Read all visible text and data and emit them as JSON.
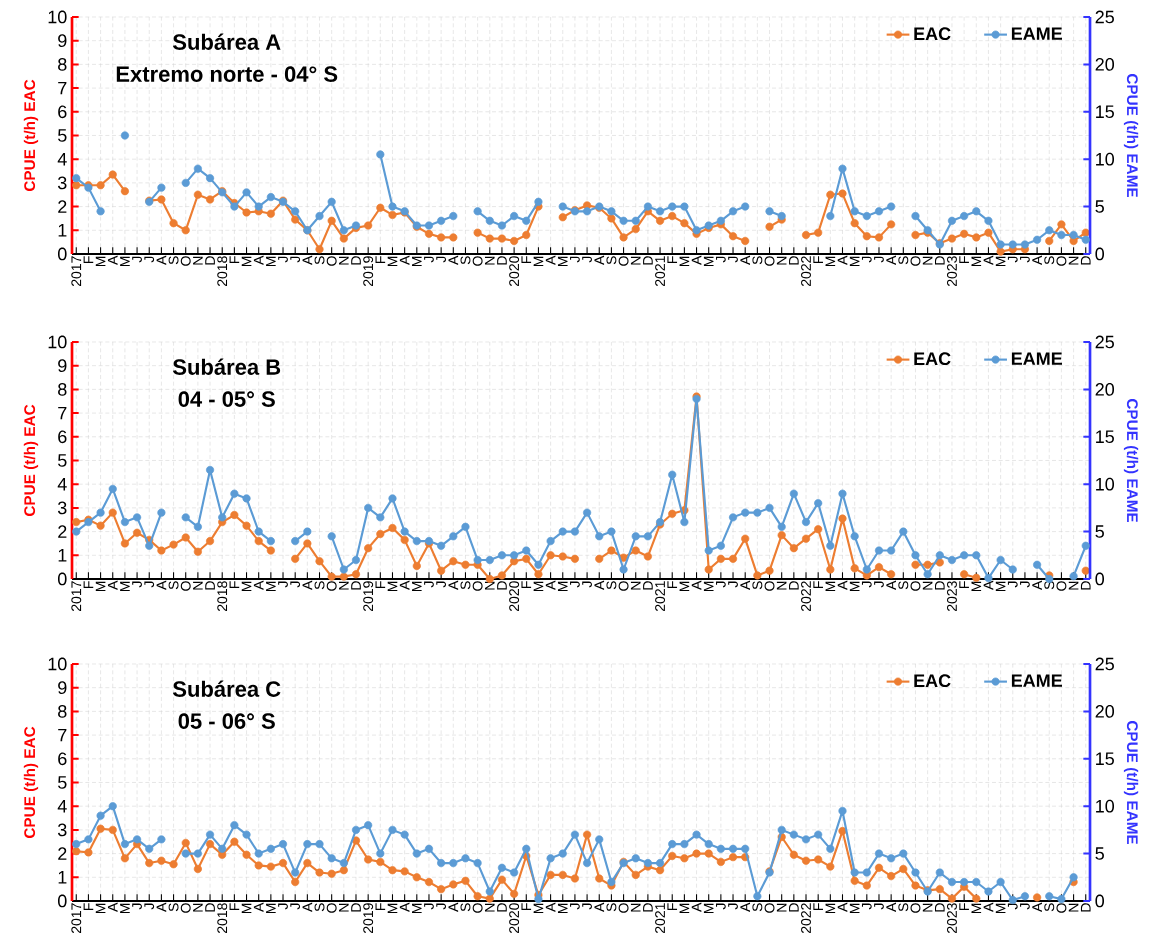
{
  "chart_data": [
    {
      "type": "line",
      "title": "Subárea A",
      "subtitle": "Extremo norte - 04° S",
      "ylabel": "CPUE (t/h) EAC",
      "y2label": "CPUE (t/h) EAME",
      "categories": [
        "2017",
        "F",
        "M",
        "A",
        "M",
        "J",
        "J",
        "A",
        "S",
        "O",
        "N",
        "D",
        "2018",
        "F",
        "M",
        "A",
        "M",
        "J",
        "J",
        "A",
        "S",
        "O",
        "N",
        "D",
        "2019",
        "F",
        "M",
        "A",
        "M",
        "J",
        "J",
        "A",
        "S",
        "O",
        "N",
        "D",
        "2020",
        "F",
        "M",
        "A",
        "M",
        "J",
        "J",
        "A",
        "S",
        "O",
        "N",
        "D",
        "2021",
        "F",
        "M",
        "A",
        "M",
        "J",
        "J",
        "A",
        "S",
        "O",
        "N",
        "D",
        "2022",
        "F",
        "M",
        "A",
        "M",
        "J",
        "J",
        "A",
        "S",
        "O",
        "N",
        "D",
        "2023",
        "F",
        "M",
        "A",
        "M",
        "J",
        "J",
        "A",
        "S",
        "O",
        "N",
        "D"
      ],
      "series": [
        {
          "name": "EAC",
          "color": "#ed7d31",
          "values": [
            2.9,
            2.9,
            2.9,
            3.35,
            2.65,
            null,
            2.25,
            2.3,
            1.3,
            1.0,
            2.5,
            2.3,
            2.65,
            2.15,
            1.75,
            1.8,
            1.7,
            2.25,
            1.45,
            1.0,
            0.2,
            1.4,
            0.65,
            1.1,
            1.2,
            1.95,
            1.65,
            1.75,
            1.15,
            0.85,
            0.7,
            0.7,
            null,
            0.9,
            0.65,
            0.65,
            0.55,
            0.8,
            2.0,
            null,
            1.55,
            1.85,
            2.05,
            1.95,
            1.5,
            0.7,
            1.05,
            1.8,
            1.4,
            1.6,
            1.3,
            0.85,
            1.1,
            1.25,
            0.75,
            0.55,
            null,
            1.15,
            1.45,
            null,
            0.8,
            0.9,
            2.5,
            2.55,
            1.3,
            0.75,
            0.7,
            1.25,
            null,
            0.8,
            0.9,
            0.45,
            0.65,
            0.85,
            0.7,
            0.9,
            0.1,
            0.2,
            0.2,
            null,
            0.55,
            1.25,
            0.55,
            0.9
          ]
        },
        {
          "name": "EAME",
          "color": "#5b9bd5",
          "axis": "y2",
          "values": [
            8,
            7,
            4.5,
            null,
            12.5,
            null,
            5.5,
            7,
            null,
            7.5,
            9,
            8,
            6.5,
            5,
            6.5,
            5,
            6,
            5.5,
            4.5,
            2.5,
            4,
            5.5,
            2.5,
            3,
            null,
            10.5,
            5,
            4.5,
            3,
            3,
            3.5,
            4,
            null,
            4.5,
            3.5,
            3,
            4,
            3.5,
            5.5,
            null,
            5,
            4.5,
            4.5,
            5,
            4.5,
            3.5,
            3.5,
            5,
            4.5,
            5,
            5,
            2.5,
            3,
            3.5,
            4.5,
            5,
            null,
            4.5,
            4,
            null,
            null,
            null,
            4,
            9,
            4.5,
            4,
            4.5,
            5,
            null,
            4,
            2.5,
            1,
            3.5,
            4,
            4.5,
            3.5,
            1,
            1,
            1,
            1.5,
            2.5,
            2,
            2,
            1.5
          ]
        }
      ],
      "ylim": [
        0,
        10
      ],
      "yticks": [
        0,
        1,
        2,
        3,
        4,
        5,
        6,
        7,
        8,
        9,
        10
      ],
      "y2lim": [
        0,
        25
      ],
      "y2ticks": [
        0,
        5,
        10,
        15,
        20,
        25
      ],
      "grid": true,
      "legend": "top right",
      "marker": "circle",
      "line_style": "solid"
    },
    {
      "type": "line",
      "title": "Subárea B",
      "subtitle": "04 - 05° S",
      "ylabel": "CPUE (t/h) EAC",
      "y2label": "CPUE (t/h) EAME",
      "categories": [
        "2017",
        "F",
        "M",
        "A",
        "M",
        "J",
        "J",
        "A",
        "S",
        "O",
        "N",
        "D",
        "2018",
        "F",
        "M",
        "A",
        "M",
        "J",
        "J",
        "A",
        "S",
        "O",
        "N",
        "D",
        "2019",
        "F",
        "M",
        "A",
        "M",
        "J",
        "J",
        "A",
        "S",
        "O",
        "N",
        "D",
        "2020",
        "F",
        "M",
        "A",
        "M",
        "J",
        "J",
        "A",
        "S",
        "O",
        "N",
        "D",
        "2021",
        "F",
        "M",
        "A",
        "M",
        "J",
        "J",
        "A",
        "S",
        "O",
        "N",
        "D",
        "2022",
        "F",
        "M",
        "A",
        "M",
        "J",
        "J",
        "A",
        "S",
        "O",
        "N",
        "D",
        "2023",
        "F",
        "M",
        "A",
        "M",
        "J",
        "J",
        "A",
        "S",
        "O",
        "N",
        "D"
      ],
      "series": [
        {
          "name": "EAC",
          "color": "#ed7d31",
          "values": [
            2.4,
            2.5,
            2.25,
            2.8,
            1.5,
            1.95,
            1.65,
            1.2,
            1.45,
            1.75,
            1.15,
            1.6,
            2.4,
            2.7,
            2.25,
            1.6,
            1.2,
            null,
            0.85,
            1.5,
            0.75,
            0.1,
            0.1,
            0.2,
            1.3,
            1.9,
            2.15,
            1.65,
            0.55,
            1.5,
            0.35,
            0.75,
            0.6,
            0.6,
            0.0,
            0.15,
            0.75,
            0.85,
            0.2,
            1.0,
            0.95,
            0.85,
            null,
            0.85,
            1.2,
            0.9,
            1.2,
            0.95,
            2.3,
            2.75,
            2.9,
            7.7,
            0.4,
            0.85,
            0.85,
            1.7,
            0.15,
            0.35,
            1.85,
            1.3,
            1.7,
            2.1,
            0.4,
            2.55,
            0.45,
            0.15,
            0.5,
            0.2,
            null,
            0.6,
            0.6,
            0.7,
            null,
            0.2,
            0.05,
            null,
            null,
            null,
            null,
            null,
            0.15,
            null,
            null,
            0.35
          ]
        },
        {
          "name": "EAME",
          "color": "#5b9bd5",
          "axis": "y2",
          "values": [
            5,
            6,
            7,
            9.5,
            6,
            6.5,
            3.5,
            7,
            null,
            6.5,
            5.5,
            11.5,
            6.5,
            9,
            8.5,
            5,
            4,
            null,
            4,
            5,
            null,
            4.5,
            1,
            2,
            7.5,
            6.5,
            8.5,
            5,
            4,
            4,
            3.5,
            4.5,
            5.5,
            2,
            2,
            2.5,
            2.5,
            3,
            1.5,
            4,
            5,
            5,
            7,
            4.5,
            5,
            1,
            4.5,
            4.5,
            6,
            11,
            6,
            19,
            3,
            3.5,
            6.5,
            7,
            7,
            7.5,
            5.5,
            9,
            6,
            8,
            3.5,
            9,
            4.5,
            1,
            3,
            3,
            5,
            2.5,
            0.5,
            2.5,
            2,
            2.5,
            2.5,
            0.1,
            2,
            1,
            null,
            1.5,
            0,
            null,
            0.3,
            3.5
          ]
        }
      ],
      "ylim": [
        0,
        10
      ],
      "yticks": [
        0,
        1,
        2,
        3,
        4,
        5,
        6,
        7,
        8,
        9,
        10
      ],
      "y2lim": [
        0,
        25
      ],
      "y2ticks": [
        0,
        5,
        10,
        15,
        20,
        25
      ],
      "grid": true,
      "legend": "top right",
      "marker": "circle",
      "line_style": "solid"
    },
    {
      "type": "line",
      "title": "Subárea C",
      "subtitle": "05 - 06° S",
      "ylabel": "CPUE (t/h) EAC",
      "y2label": "CPUE (t/h) EAME",
      "categories": [
        "2017",
        "F",
        "M",
        "A",
        "M",
        "J",
        "J",
        "A",
        "S",
        "O",
        "N",
        "D",
        "2018",
        "F",
        "M",
        "A",
        "M",
        "J",
        "J",
        "A",
        "S",
        "O",
        "N",
        "D",
        "2019",
        "F",
        "M",
        "A",
        "M",
        "J",
        "J",
        "A",
        "S",
        "O",
        "N",
        "D",
        "2020",
        "F",
        "M",
        "A",
        "M",
        "J",
        "J",
        "A",
        "S",
        "O",
        "N",
        "D",
        "2021",
        "F",
        "M",
        "A",
        "M",
        "J",
        "J",
        "A",
        "S",
        "O",
        "N",
        "D",
        "2022",
        "F",
        "M",
        "A",
        "M",
        "J",
        "J",
        "A",
        "S",
        "O",
        "N",
        "D",
        "2023",
        "F",
        "M",
        "A",
        "M",
        "J",
        "J",
        "A",
        "S",
        "O",
        "N",
        "D"
      ],
      "series": [
        {
          "name": "EAC",
          "color": "#ed7d31",
          "values": [
            2.1,
            2.05,
            3.05,
            3.0,
            1.8,
            2.4,
            1.6,
            1.7,
            1.55,
            2.45,
            1.35,
            2.4,
            1.95,
            2.5,
            1.95,
            1.5,
            1.45,
            1.6,
            0.8,
            1.6,
            1.2,
            1.15,
            1.3,
            2.55,
            1.75,
            1.65,
            1.3,
            1.25,
            1.0,
            0.8,
            0.5,
            0.7,
            0.85,
            0.2,
            0.1,
            0.9,
            0.3,
            1.9,
            0.25,
            1.1,
            1.1,
            0.95,
            2.8,
            0.95,
            0.65,
            1.65,
            1.1,
            1.45,
            1.3,
            1.9,
            1.8,
            2.0,
            2.0,
            1.65,
            1.85,
            1.85,
            null,
            1.25,
            2.7,
            1.95,
            1.7,
            1.75,
            1.45,
            2.95,
            0.85,
            0.65,
            1.4,
            1.05,
            1.35,
            0.65,
            0.45,
            0.5,
            0.1,
            0.6,
            0.1,
            null,
            null,
            null,
            null,
            0.15,
            null,
            null,
            0.8,
            null
          ]
        },
        {
          "name": "EAME",
          "color": "#5b9bd5",
          "axis": "y2",
          "values": [
            6,
            6.5,
            9,
            10,
            6,
            6.5,
            5.5,
            6.5,
            null,
            5,
            5,
            7,
            5.5,
            8,
            7,
            5,
            5.5,
            6,
            3,
            6,
            6,
            4.5,
            4,
            7.5,
            8,
            5,
            7.5,
            7,
            5,
            5.5,
            4,
            4,
            4.5,
            4,
            1,
            3.5,
            3,
            5.5,
            0.2,
            4.5,
            5,
            7,
            4,
            6.5,
            2,
            4,
            4.5,
            4,
            4,
            6,
            6,
            7,
            6,
            5.5,
            5.5,
            5.5,
            0.5,
            3,
            7.5,
            7,
            6.5,
            7,
            5.5,
            9.5,
            3,
            3,
            5,
            4.5,
            5,
            3,
            1,
            3,
            2,
            2,
            2,
            1,
            2,
            0.1,
            0.5,
            null,
            0.5,
            0.2,
            2.5,
            null
          ]
        }
      ],
      "ylim": [
        0,
        10
      ],
      "yticks": [
        0,
        1,
        2,
        3,
        4,
        5,
        6,
        7,
        8,
        9,
        10
      ],
      "y2lim": [
        0,
        25
      ],
      "y2ticks": [
        0,
        5,
        10,
        15,
        20,
        25
      ],
      "grid": true,
      "legend": "top right",
      "marker": "circle",
      "line_style": "solid"
    }
  ]
}
